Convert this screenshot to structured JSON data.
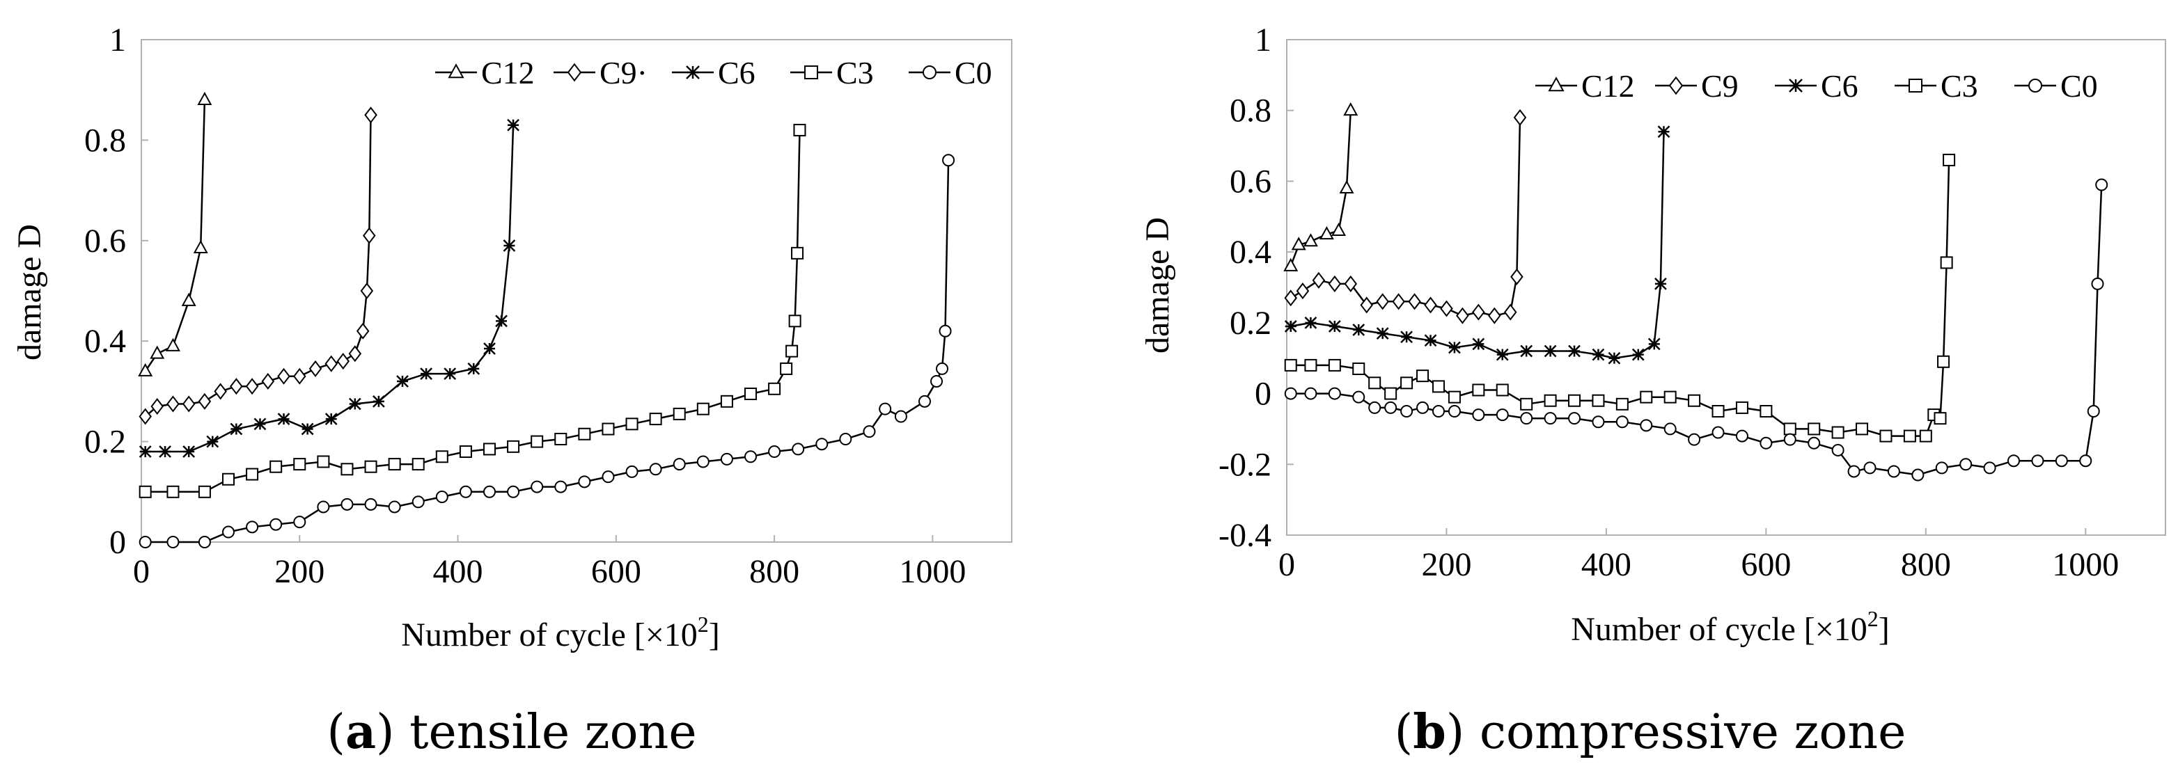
{
  "chart_data": [
    {
      "type": "line",
      "panel": "a",
      "caption_letter": "a",
      "caption_text": "tensile zone",
      "xlabel_main": "Number of cycle [×10",
      "xlabel_sup": "2",
      "xlabel_end": "]",
      "ylabel": "damage D",
      "xlim": [
        0,
        1100
      ],
      "ylim": [
        0,
        1
      ],
      "xticks": [
        "0",
        "200",
        "400",
        "600",
        "800",
        "1000"
      ],
      "xtick_values": [
        0,
        200,
        400,
        600,
        800,
        1000
      ],
      "yticks": [
        "0",
        "0.2",
        "0.4",
        "0.6",
        "0.8",
        "1"
      ],
      "ytick_values": [
        0,
        0.2,
        0.4,
        0.6,
        0.8,
        1
      ],
      "legend_position": "top-right",
      "series": [
        {
          "name": "C12",
          "marker": "triangle",
          "legend_label": "C12",
          "x": [
            5,
            20,
            40,
            60,
            75,
            80
          ],
          "y": [
            0.34,
            0.375,
            0.39,
            0.48,
            0.585,
            0.88
          ]
        },
        {
          "name": "C9",
          "marker": "diamond",
          "legend_label": "C9·",
          "x": [
            5,
            20,
            40,
            60,
            80,
            100,
            120,
            140,
            160,
            180,
            200,
            220,
            240,
            255,
            270,
            280,
            285,
            288,
            290
          ],
          "y": [
            0.25,
            0.27,
            0.275,
            0.275,
            0.28,
            0.3,
            0.31,
            0.31,
            0.32,
            0.33,
            0.33,
            0.345,
            0.355,
            0.36,
            0.375,
            0.42,
            0.5,
            0.61,
            0.85
          ]
        },
        {
          "name": "C6",
          "marker": "star",
          "legend_label": "C6",
          "x": [
            5,
            30,
            60,
            90,
            120,
            150,
            180,
            210,
            240,
            270,
            300,
            330,
            360,
            390,
            420,
            440,
            455,
            465,
            470
          ],
          "y": [
            0.18,
            0.18,
            0.18,
            0.2,
            0.225,
            0.235,
            0.245,
            0.225,
            0.245,
            0.275,
            0.28,
            0.32,
            0.335,
            0.335,
            0.345,
            0.385,
            0.44,
            0.59,
            0.83
          ]
        },
        {
          "name": "C3",
          "marker": "square",
          "legend_label": "C3",
          "x": [
            5,
            40,
            80,
            110,
            140,
            170,
            200,
            230,
            260,
            290,
            320,
            350,
            380,
            410,
            440,
            470,
            500,
            530,
            560,
            590,
            620,
            650,
            680,
            710,
            740,
            770,
            800,
            815,
            822,
            826,
            829,
            832
          ],
          "y": [
            0.1,
            0.1,
            0.1,
            0.125,
            0.135,
            0.15,
            0.155,
            0.16,
            0.145,
            0.15,
            0.155,
            0.155,
            0.17,
            0.18,
            0.185,
            0.19,
            0.2,
            0.205,
            0.215,
            0.225,
            0.235,
            0.245,
            0.255,
            0.265,
            0.28,
            0.295,
            0.305,
            0.345,
            0.38,
            0.44,
            0.575,
            0.82
          ]
        },
        {
          "name": "C0",
          "marker": "circle",
          "legend_label": "C0",
          "x": [
            5,
            40,
            80,
            110,
            140,
            170,
            200,
            230,
            260,
            290,
            320,
            350,
            380,
            410,
            440,
            470,
            500,
            530,
            560,
            590,
            620,
            650,
            680,
            710,
            740,
            770,
            800,
            830,
            860,
            890,
            920,
            940,
            960,
            990,
            1005,
            1012,
            1016,
            1020
          ],
          "y": [
            0.0,
            0.0,
            0.0,
            0.02,
            0.03,
            0.035,
            0.04,
            0.07,
            0.075,
            0.075,
            0.07,
            0.08,
            0.09,
            0.1,
            0.1,
            0.1,
            0.11,
            0.11,
            0.12,
            0.13,
            0.14,
            0.145,
            0.155,
            0.16,
            0.165,
            0.17,
            0.18,
            0.185,
            0.195,
            0.205,
            0.22,
            0.265,
            0.25,
            0.28,
            0.32,
            0.345,
            0.42,
            0.76
          ]
        }
      ]
    },
    {
      "type": "line",
      "panel": "b",
      "caption_letter": "b",
      "caption_text": "compressive zone",
      "xlabel_main": "Number of cycle [×10",
      "xlabel_sup": "2",
      "xlabel_end": "]",
      "ylabel": "damage D",
      "xlim": [
        0,
        1100
      ],
      "ylim": [
        -0.4,
        1
      ],
      "xticks": [
        "0",
        "200",
        "400",
        "600",
        "800",
        "1000"
      ],
      "xtick_values": [
        0,
        200,
        400,
        600,
        800,
        1000
      ],
      "yticks": [
        "-0.4",
        "-0.2",
        "0",
        "0.2",
        "0.4",
        "0.6",
        "0.8",
        "1"
      ],
      "ytick_values": [
        -0.4,
        -0.2,
        0,
        0.2,
        0.4,
        0.6,
        0.8,
        1
      ],
      "legend_position": "top-right",
      "series": [
        {
          "name": "C12",
          "marker": "triangle",
          "legend_label": "C12",
          "x": [
            5,
            15,
            30,
            50,
            65,
            75,
            80
          ],
          "y": [
            0.36,
            0.42,
            0.43,
            0.45,
            0.46,
            0.58,
            0.8
          ]
        },
        {
          "name": "C9",
          "marker": "diamond",
          "legend_label": "C9",
          "x": [
            5,
            20,
            40,
            60,
            80,
            100,
            120,
            140,
            160,
            180,
            200,
            220,
            240,
            260,
            280,
            288,
            292
          ],
          "y": [
            0.27,
            0.29,
            0.32,
            0.31,
            0.31,
            0.25,
            0.26,
            0.26,
            0.26,
            0.25,
            0.24,
            0.22,
            0.23,
            0.22,
            0.23,
            0.33,
            0.78
          ]
        },
        {
          "name": "C6",
          "marker": "star",
          "legend_label": "C6",
          "x": [
            5,
            30,
            60,
            90,
            120,
            150,
            180,
            210,
            240,
            270,
            300,
            330,
            360,
            390,
            410,
            440,
            460,
            468,
            472
          ],
          "y": [
            0.19,
            0.2,
            0.19,
            0.18,
            0.17,
            0.16,
            0.15,
            0.13,
            0.14,
            0.11,
            0.12,
            0.12,
            0.12,
            0.11,
            0.1,
            0.11,
            0.14,
            0.31,
            0.74
          ]
        },
        {
          "name": "C3",
          "marker": "square",
          "legend_label": "C3",
          "x": [
            5,
            30,
            60,
            90,
            110,
            130,
            150,
            170,
            190,
            210,
            240,
            270,
            300,
            330,
            360,
            390,
            420,
            450,
            480,
            510,
            540,
            570,
            600,
            630,
            660,
            690,
            720,
            750,
            780,
            800,
            810,
            818,
            822,
            826,
            829
          ],
          "y": [
            0.08,
            0.08,
            0.08,
            0.07,
            0.03,
            0.0,
            0.03,
            0.05,
            0.02,
            -0.01,
            0.01,
            0.01,
            -0.03,
            -0.02,
            -0.02,
            -0.02,
            -0.03,
            -0.01,
            -0.01,
            -0.02,
            -0.05,
            -0.04,
            -0.05,
            -0.1,
            -0.1,
            -0.11,
            -0.1,
            -0.12,
            -0.12,
            -0.12,
            -0.06,
            -0.07,
            0.09,
            0.37,
            0.66
          ]
        },
        {
          "name": "C0",
          "marker": "circle",
          "legend_label": "C0",
          "x": [
            5,
            30,
            60,
            90,
            110,
            130,
            150,
            170,
            190,
            210,
            240,
            270,
            300,
            330,
            360,
            390,
            420,
            450,
            480,
            510,
            540,
            570,
            600,
            630,
            660,
            690,
            710,
            730,
            760,
            790,
            820,
            850,
            880,
            910,
            940,
            970,
            1000,
            1010,
            1015,
            1020
          ],
          "y": [
            0.0,
            0.0,
            0.0,
            -0.01,
            -0.04,
            -0.04,
            -0.05,
            -0.04,
            -0.05,
            -0.05,
            -0.06,
            -0.06,
            -0.07,
            -0.07,
            -0.07,
            -0.08,
            -0.08,
            -0.09,
            -0.1,
            -0.13,
            -0.11,
            -0.12,
            -0.14,
            -0.13,
            -0.14,
            -0.16,
            -0.22,
            -0.21,
            -0.22,
            -0.23,
            -0.21,
            -0.2,
            -0.21,
            -0.19,
            -0.19,
            -0.19,
            -0.19,
            -0.05,
            0.31,
            0.59
          ]
        }
      ]
    }
  ]
}
